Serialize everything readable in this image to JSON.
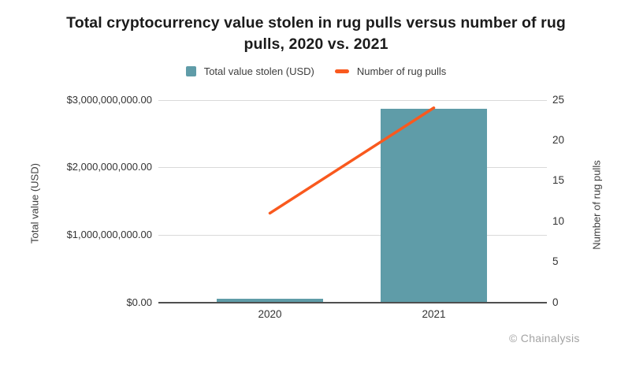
{
  "title": {
    "line1": "Total cryptocurrency value stolen in rug pulls versus number of rug",
    "line2": "pulls, 2020 vs. 2021"
  },
  "legend": [
    {
      "label": "Total value stolen (USD)",
      "marker": "bar-swatch",
      "color": "#5F9CA8"
    },
    {
      "label": "Number of rug pulls",
      "marker": "line-swatch",
      "color": "#F9591E"
    }
  ],
  "attribution": "© Chainalysis",
  "chart_data": {
    "type": "bar",
    "subtype": "bar+line combo, dual y-axes",
    "title": "Total cryptocurrency value stolen in rug pulls versus number of rug pulls, 2020 vs. 2021",
    "categories": [
      "2020",
      "2021"
    ],
    "series": [
      {
        "name": "Total value stolen (USD)",
        "type": "bar",
        "axis": "left",
        "values": [
          50000000,
          2870000000
        ],
        "color": "#5F9CA8"
      },
      {
        "name": "Number of rug pulls",
        "type": "line",
        "axis": "right",
        "values": [
          11,
          24
        ],
        "color": "#F9591E"
      }
    ],
    "left_axis": {
      "label": "Total value (USD)",
      "min": 0,
      "max": 3000000000,
      "ticks": [
        {
          "value": 3000000000,
          "label": "$3,000,000,000.00"
        },
        {
          "value": 2000000000,
          "label": "$2,000,000,000.00"
        },
        {
          "value": 1000000000,
          "label": "$1,000,000,000.00"
        },
        {
          "value": 0,
          "label": "$0.00"
        }
      ]
    },
    "right_axis": {
      "label": "Number of rug pulls",
      "min": 0,
      "max": 25,
      "ticks": [
        {
          "value": 25,
          "label": "25"
        },
        {
          "value": 20,
          "label": "20"
        },
        {
          "value": 15,
          "label": "15"
        },
        {
          "value": 10,
          "label": "10"
        },
        {
          "value": 5,
          "label": "5"
        },
        {
          "value": 0,
          "label": "0"
        }
      ]
    },
    "grid": "horizontal gridlines at left-axis ticks",
    "legend_position": "top-center"
  }
}
